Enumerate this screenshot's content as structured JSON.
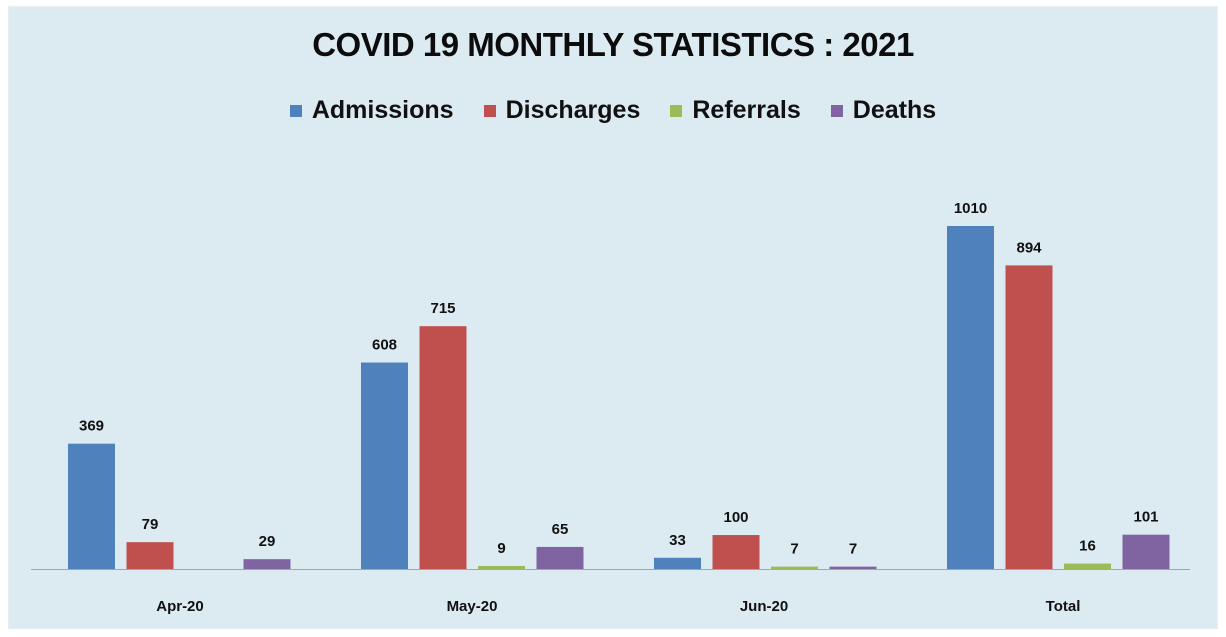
{
  "chart_data": {
    "type": "bar",
    "title": "COVID 19 MONTHLY STATISTICS : 2021",
    "categories": [
      "Apr-20",
      "May-20",
      "Jun-20",
      "Total"
    ],
    "series": [
      {
        "name": "Admissions",
        "color": "#4f81bd",
        "values": [
          369,
          608,
          33,
          1010
        ]
      },
      {
        "name": "Discharges",
        "color": "#c0504d",
        "values": [
          79,
          715,
          100,
          894
        ]
      },
      {
        "name": "Referrals",
        "color": "#9bbb59",
        "values": [
          null,
          9,
          7,
          16
        ]
      },
      {
        "name": "Deaths",
        "color": "#8064a2",
        "values": [
          29,
          65,
          7,
          101
        ]
      }
    ],
    "xlabel": "",
    "ylabel": "",
    "ylim": [
      0,
      1010
    ],
    "grid": false,
    "legend_position": "top",
    "data_labels": true
  }
}
